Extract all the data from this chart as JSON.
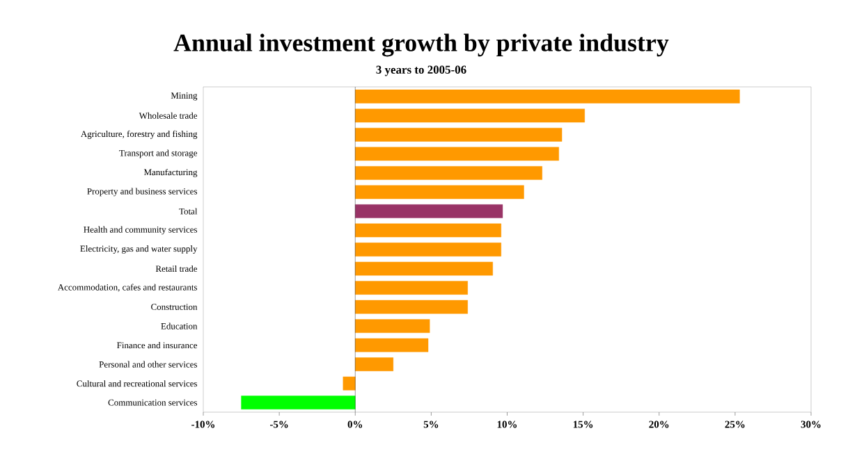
{
  "chart_data": {
    "type": "bar",
    "orientation": "horizontal",
    "title": "Annual investment growth by private industry",
    "subtitle": "3 years to 2005-06",
    "categories": [
      "Mining",
      "Wholesale trade",
      "Agriculture, forestry and fishing",
      "Transport and storage",
      "Manufacturing",
      "Property and business services",
      "Total",
      "Health and community services",
      "Electricity, gas and water supply",
      "Retail trade",
      "Accommodation, cafes and restaurants",
      "Construction",
      "Education",
      "Finance and insurance",
      "Personal and other services",
      "Cultural and recreational services",
      "Communication services"
    ],
    "values": [
      25.3,
      15.1,
      13.6,
      13.4,
      12.3,
      11.1,
      9.7,
      9.6,
      9.6,
      9.05,
      7.4,
      7.4,
      4.9,
      4.8,
      2.5,
      -0.8,
      -7.5
    ],
    "colors": [
      "#ff9900",
      "#ff9900",
      "#ff9900",
      "#ff9900",
      "#ff9900",
      "#ff9900",
      "#993366",
      "#ff9900",
      "#ff9900",
      "#ff9900",
      "#ff9900",
      "#ff9900",
      "#ff9900",
      "#ff9900",
      "#ff9900",
      "#ff9900",
      "#00ff00"
    ],
    "xlim": [
      -10,
      30
    ],
    "xticks": [
      {
        "value": -10,
        "label": "-10%"
      },
      {
        "value": -5,
        "label": "-5%"
      },
      {
        "value": 0,
        "label": "0%"
      },
      {
        "value": 5,
        "label": "5%"
      },
      {
        "value": 10,
        "label": "10%"
      },
      {
        "value": 15,
        "label": "15%"
      },
      {
        "value": 20,
        "label": "20%"
      },
      {
        "value": 25,
        "label": "25%"
      },
      {
        "value": 30,
        "label": "30%"
      }
    ]
  }
}
